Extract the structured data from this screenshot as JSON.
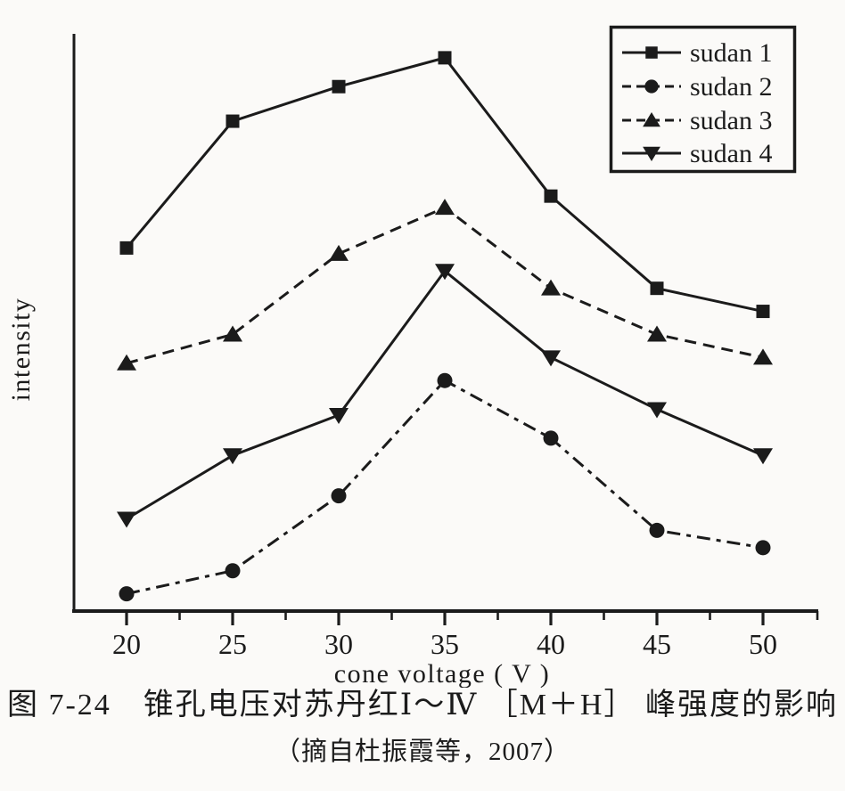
{
  "figure": {
    "caption_line1": "图 7-24　锥孔电压对苏丹红Ⅰ～Ⅳ ［M＋H］ 峰强度的影响",
    "caption_line2": "（摘自杜振霞等，2007）"
  },
  "chart_data": {
    "type": "line",
    "title": "",
    "xlabel": "cone voltage ( V )",
    "ylabel": "intensity",
    "x": [
      20,
      25,
      30,
      35,
      40,
      45,
      50
    ],
    "x_tick_labels": [
      "20",
      "25",
      "30",
      "35",
      "40",
      "45",
      "50"
    ],
    "xlim": [
      17.5,
      52.5
    ],
    "ylim": [
      0,
      100
    ],
    "y_tick_labels": [],
    "grid": false,
    "legend_position": "top-right",
    "legend_border": true,
    "series": [
      {
        "name": "sudan 1",
        "marker": "square",
        "line_style": "solid",
        "values": [
          63,
          85,
          91,
          96,
          72,
          56,
          52
        ]
      },
      {
        "name": "sudan 2",
        "marker": "circle",
        "line_style": "dash-dot",
        "values": [
          3,
          7,
          20,
          40,
          30,
          14,
          11
        ]
      },
      {
        "name": "sudan 3",
        "marker": "triangle-up",
        "line_style": "dashed",
        "values": [
          43,
          48,
          62,
          70,
          56,
          48,
          44
        ]
      },
      {
        "name": "sudan 4",
        "marker": "triangle-down",
        "line_style": "solid",
        "values": [
          16,
          27,
          34,
          59,
          44,
          35,
          27
        ]
      }
    ],
    "units_note": "intensity axis unlabeled in figure; values are arbitrary units estimated 0-100"
  },
  "colors": {
    "ink": "#1b1b1b",
    "background": "#fbfaf8"
  }
}
